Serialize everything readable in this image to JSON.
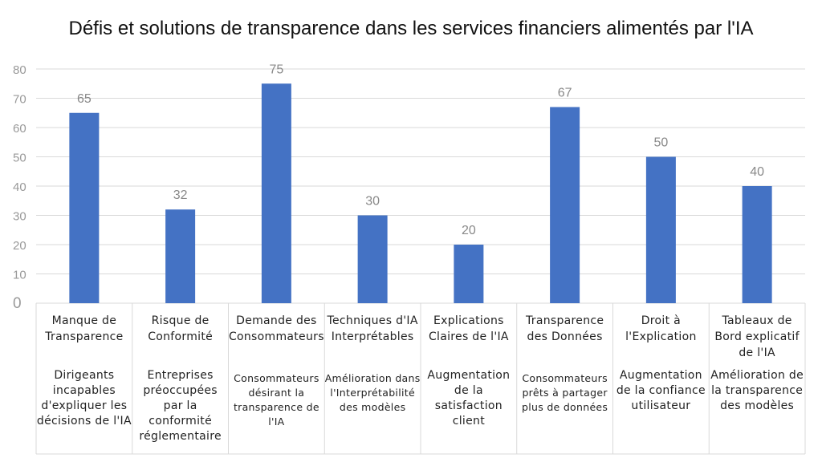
{
  "colors": {
    "bar": "#4472C4",
    "grid": "#D9D9D9",
    "tick": "#999999",
    "label": "#888888"
  },
  "chart_data": {
    "type": "bar",
    "title": "Défis et solutions de transparence dans les services financiers alimentés par l'IA",
    "categories": [
      "Manque de Transparence",
      "Risque de Conformité",
      "Demande des Consommateurs",
      "Techniques d'IA Interprétables",
      "Explications Claires de l'IA",
      "Transparence des Données",
      "Droit à l'Explication",
      "Tableaux de Bord explicatif de l'IA"
    ],
    "descriptions": [
      "Dirigeants incapables d'expliquer les décisions de l'IA",
      "Entreprises préoccupées par la conformité réglementaire",
      "Consommateurs désirant la transparence de l'IA",
      "Amélioration dans l'Interprétabilité des modèles",
      "Augmentation de la satisfaction client",
      "Consommateurs prêts à partager plus de données",
      "Augmentation de la confiance utilisateur",
      "Amélioration de la transparence des modèles"
    ],
    "values": [
      65,
      32,
      75,
      30,
      20,
      67,
      50,
      40
    ],
    "yticks": [
      0,
      10,
      20,
      30,
      40,
      50,
      60,
      70,
      80
    ],
    "ylim": [
      0,
      80
    ],
    "xlabel": "",
    "ylabel": "",
    "grid": true,
    "legend": "none"
  }
}
